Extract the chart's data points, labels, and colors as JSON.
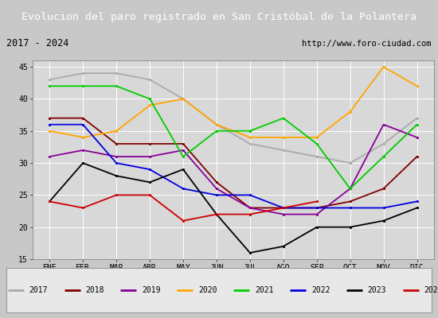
{
  "title": "Evolucion del paro registrado en San Cristóbal de la Polantera",
  "subtitle_left": "2017 - 2024",
  "subtitle_right": "http://www.foro-ciudad.com",
  "months": [
    "ENE",
    "FEB",
    "MAR",
    "ABR",
    "MAY",
    "JUN",
    "JUL",
    "AGO",
    "SEP",
    "OCT",
    "NOV",
    "DIC"
  ],
  "ylim": [
    15,
    46
  ],
  "yticks": [
    15,
    20,
    25,
    30,
    35,
    40,
    45
  ],
  "series": {
    "2017": {
      "color": "#aaaaaa",
      "values": [
        43,
        44,
        44,
        43,
        40,
        36,
        33,
        32,
        31,
        30,
        33,
        37
      ]
    },
    "2018": {
      "color": "#800000",
      "values": [
        37,
        37,
        33,
        33,
        33,
        27,
        23,
        23,
        23,
        24,
        26,
        31
      ]
    },
    "2019": {
      "color": "#880099",
      "values": [
        31,
        32,
        31,
        31,
        32,
        26,
        23,
        22,
        22,
        26,
        36,
        34
      ]
    },
    "2020": {
      "color": "#ffa500",
      "values": [
        35,
        34,
        35,
        39,
        40,
        36,
        34,
        34,
        34,
        38,
        45,
        42
      ]
    },
    "2021": {
      "color": "#00cc00",
      "values": [
        42,
        42,
        42,
        40,
        31,
        35,
        35,
        37,
        33,
        26,
        31,
        36
      ]
    },
    "2022": {
      "color": "#0000dd",
      "values": [
        36,
        36,
        30,
        29,
        26,
        25,
        25,
        23,
        23,
        23,
        23,
        24
      ]
    },
    "2023": {
      "color": "#000000",
      "values": [
        24,
        30,
        28,
        27,
        29,
        22,
        16,
        17,
        20,
        20,
        21,
        23
      ]
    },
    "2024": {
      "color": "#cc0000",
      "values": [
        24,
        23,
        25,
        25,
        21,
        22,
        22,
        23,
        24,
        null,
        null,
        null
      ]
    }
  },
  "fig_bg": "#c8c8c8",
  "plot_bg": "#d8d8d8",
  "title_bg": "#4466bb",
  "title_color": "#ffffff",
  "subtitle_bg": "#cccccc",
  "legend_bg": "#e8e8e8",
  "border_color": "#999999"
}
